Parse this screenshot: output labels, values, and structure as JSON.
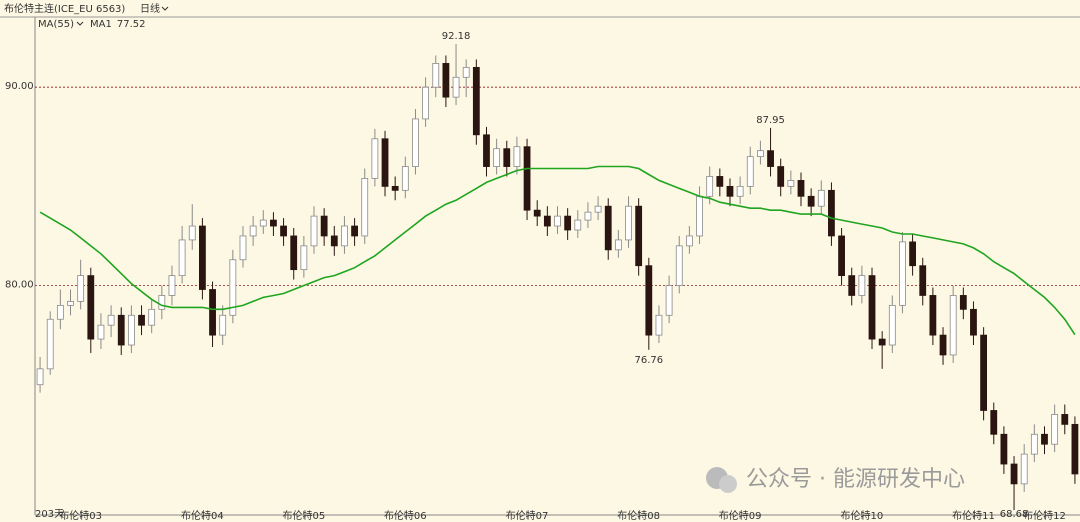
{
  "chart_data": {
    "type": "candlestick",
    "title": "布伦特主连(ICE_EU 6563)",
    "period": "日线",
    "indicator": "MA(55)",
    "count_label": "203天",
    "watermark": "公众号 · 能源研发中心",
    "up_color": "#8a8a8a",
    "down_color": "#2a1510",
    "grid_color": "#8b1a1a",
    "grid": true,
    "ylim": [
      68.43,
      93.54
    ],
    "yticks": [
      {
        "value": 80,
        "label": "80.00"
      },
      {
        "value": 90,
        "label": "90.00"
      }
    ],
    "categories": [
      null,
      null,
      null,
      null,
      "布伦特03",
      null,
      null,
      null,
      null,
      null,
      null,
      null,
      null,
      null,
      null,
      null,
      "布伦特04",
      null,
      null,
      null,
      null,
      null,
      null,
      null,
      null,
      null,
      "布伦特05",
      null,
      null,
      null,
      null,
      null,
      null,
      null,
      null,
      null,
      "布伦特06",
      null,
      null,
      null,
      null,
      null,
      null,
      null,
      null,
      null,
      null,
      null,
      "布伦特07",
      null,
      null,
      null,
      null,
      null,
      null,
      null,
      null,
      null,
      null,
      "布伦特08",
      null,
      null,
      null,
      null,
      null,
      null,
      null,
      null,
      null,
      "布伦特09",
      null,
      null,
      null,
      null,
      null,
      null,
      null,
      null,
      null,
      null,
      null,
      "布伦特10",
      null,
      null,
      null,
      null,
      null,
      null,
      null,
      null,
      null,
      null,
      "布伦特11",
      null,
      null,
      null,
      null,
      null,
      null,
      "布伦特12",
      null,
      null,
      null
    ],
    "ohlc": [
      [
        75.0,
        76.4,
        74.6,
        75.8
      ],
      [
        75.8,
        78.7,
        75.5,
        78.3
      ],
      [
        78.3,
        79.8,
        77.8,
        79.0
      ],
      [
        79.0,
        79.8,
        78.5,
        79.2
      ],
      [
        79.2,
        81.3,
        78.8,
        80.5
      ],
      [
        80.5,
        80.9,
        76.6,
        77.3
      ],
      [
        77.3,
        78.6,
        76.8,
        78.0
      ],
      [
        78.0,
        79.0,
        77.4,
        78.5
      ],
      [
        78.5,
        78.9,
        76.5,
        77.0
      ],
      [
        77.0,
        79.0,
        76.6,
        78.5
      ],
      [
        78.5,
        79.0,
        77.5,
        78.0
      ],
      [
        78.0,
        79.3,
        77.6,
        78.8
      ],
      [
        78.8,
        80.0,
        78.3,
        79.5
      ],
      [
        79.5,
        81.0,
        79.0,
        80.5
      ],
      [
        80.5,
        83.0,
        80.1,
        82.3
      ],
      [
        82.3,
        84.1,
        81.8,
        83.0
      ],
      [
        83.0,
        83.4,
        79.3,
        79.8
      ],
      [
        79.8,
        80.2,
        76.9,
        77.5
      ],
      [
        77.5,
        79.0,
        77.0,
        78.5
      ],
      [
        78.5,
        81.8,
        78.1,
        81.3
      ],
      [
        81.3,
        83.0,
        80.9,
        82.5
      ],
      [
        82.5,
        83.5,
        82.0,
        83.0
      ],
      [
        83.0,
        83.8,
        82.6,
        83.3
      ],
      [
        83.3,
        83.7,
        82.5,
        83.0
      ],
      [
        83.0,
        83.4,
        82.0,
        82.5
      ],
      [
        82.5,
        82.9,
        80.3,
        80.8
      ],
      [
        80.8,
        82.5,
        80.4,
        82.0
      ],
      [
        82.0,
        84.0,
        81.6,
        83.5
      ],
      [
        83.5,
        83.9,
        82.0,
        82.5
      ],
      [
        82.5,
        83.0,
        81.5,
        82.0
      ],
      [
        82.0,
        83.5,
        81.6,
        83.0
      ],
      [
        83.0,
        83.4,
        82.0,
        82.5
      ],
      [
        82.5,
        85.9,
        82.1,
        85.4
      ],
      [
        85.4,
        87.9,
        85.0,
        87.4
      ],
      [
        87.4,
        87.8,
        84.5,
        85.0
      ],
      [
        85.0,
        85.5,
        84.3,
        84.8
      ],
      [
        84.8,
        86.5,
        84.4,
        86.0
      ],
      [
        86.0,
        88.9,
        85.6,
        88.4
      ],
      [
        88.4,
        90.5,
        88.0,
        90.0
      ],
      [
        90.0,
        91.6,
        89.5,
        91.2
      ],
      [
        91.2,
        91.6,
        89.0,
        89.5
      ],
      [
        89.5,
        92.18,
        89.1,
        90.5
      ],
      [
        90.5,
        91.4,
        89.5,
        91.0
      ],
      [
        91.0,
        91.4,
        87.1,
        87.6
      ],
      [
        87.6,
        88.0,
        85.5,
        86.0
      ],
      [
        86.0,
        87.4,
        85.6,
        86.9
      ],
      [
        86.9,
        87.3,
        85.5,
        86.0
      ],
      [
        86.0,
        87.5,
        85.6,
        87.0
      ],
      [
        87.0,
        87.4,
        83.3,
        83.8
      ],
      [
        83.8,
        84.3,
        83.0,
        83.5
      ],
      [
        83.5,
        84.0,
        82.5,
        83.0
      ],
      [
        83.0,
        84.0,
        82.6,
        83.5
      ],
      [
        83.5,
        83.9,
        82.3,
        82.8
      ],
      [
        82.8,
        83.8,
        82.4,
        83.3
      ],
      [
        83.3,
        84.2,
        82.9,
        83.7
      ],
      [
        83.7,
        84.5,
        83.3,
        84.0
      ],
      [
        84.0,
        84.4,
        81.3,
        81.8
      ],
      [
        81.8,
        82.8,
        81.4,
        82.3
      ],
      [
        82.3,
        84.5,
        81.9,
        84.0
      ],
      [
        84.0,
        84.4,
        80.5,
        81.0
      ],
      [
        81.0,
        81.4,
        76.76,
        77.5
      ],
      [
        77.5,
        79.0,
        77.1,
        78.5
      ],
      [
        78.5,
        80.5,
        78.1,
        80.0
      ],
      [
        80.0,
        82.5,
        79.6,
        82.0
      ],
      [
        82.0,
        83.0,
        81.6,
        82.5
      ],
      [
        82.5,
        85.0,
        82.1,
        84.5
      ],
      [
        84.5,
        86.0,
        84.1,
        85.5
      ],
      [
        85.5,
        85.9,
        84.5,
        85.0
      ],
      [
        85.0,
        85.4,
        84.0,
        84.5
      ],
      [
        84.5,
        85.5,
        84.1,
        85.0
      ],
      [
        85.0,
        87.0,
        84.6,
        86.5
      ],
      [
        86.5,
        87.3,
        86.1,
        86.8
      ],
      [
        86.8,
        87.95,
        85.5,
        86.0
      ],
      [
        86.0,
        86.4,
        84.5,
        85.0
      ],
      [
        85.0,
        85.8,
        84.6,
        85.3
      ],
      [
        85.3,
        85.7,
        84.0,
        84.5
      ],
      [
        84.5,
        84.9,
        83.5,
        84.0
      ],
      [
        84.0,
        85.3,
        83.6,
        84.8
      ],
      [
        84.8,
        85.2,
        82.0,
        82.5
      ],
      [
        82.5,
        82.9,
        80.0,
        80.5
      ],
      [
        80.5,
        80.9,
        79.0,
        79.5
      ],
      [
        79.5,
        81.0,
        79.1,
        80.5
      ],
      [
        80.5,
        80.9,
        76.8,
        77.3
      ],
      [
        77.3,
        77.7,
        75.8,
        77.0
      ],
      [
        77.0,
        79.5,
        76.6,
        79.0
      ],
      [
        79.0,
        82.7,
        78.6,
        82.2
      ],
      [
        82.2,
        82.6,
        80.5,
        81.0
      ],
      [
        81.0,
        81.4,
        79.0,
        79.5
      ],
      [
        79.5,
        79.9,
        77.0,
        77.5
      ],
      [
        77.5,
        77.9,
        76.0,
        76.5
      ],
      [
        76.5,
        80.0,
        76.1,
        79.5
      ],
      [
        79.5,
        79.9,
        78.3,
        78.8
      ],
      [
        78.8,
        79.2,
        77.0,
        77.5
      ],
      [
        77.5,
        77.9,
        73.2,
        73.7
      ],
      [
        73.7,
        74.1,
        72.0,
        72.5
      ],
      [
        72.5,
        72.9,
        70.5,
        71.0
      ],
      [
        71.0,
        71.4,
        68.68,
        70.0
      ],
      [
        70.0,
        72.0,
        69.6,
        71.5
      ],
      [
        71.5,
        73.0,
        71.1,
        72.5
      ],
      [
        72.5,
        72.9,
        71.5,
        72.0
      ],
      [
        72.0,
        74.0,
        71.6,
        73.5
      ],
      [
        73.5,
        74.0,
        72.5,
        73.0
      ],
      [
        73.0,
        73.4,
        70.0,
        70.5
      ]
    ],
    "series": [
      {
        "name": "MA1",
        "color": "#1fa51f",
        "values": [
          83.7,
          83.4,
          83.1,
          82.8,
          82.4,
          82.0,
          81.6,
          81.1,
          80.6,
          80.1,
          79.7,
          79.3,
          79.0,
          78.9,
          78.9,
          78.9,
          78.9,
          78.8,
          78.8,
          78.9,
          79.0,
          79.2,
          79.4,
          79.5,
          79.6,
          79.8,
          80.0,
          80.2,
          80.4,
          80.5,
          80.7,
          80.9,
          81.2,
          81.5,
          81.9,
          82.3,
          82.7,
          83.1,
          83.5,
          83.8,
          84.1,
          84.3,
          84.6,
          84.9,
          85.2,
          85.4,
          85.6,
          85.8,
          85.9,
          85.9,
          85.9,
          85.9,
          85.9,
          85.9,
          85.9,
          86.0,
          86.0,
          86.0,
          86.0,
          85.9,
          85.6,
          85.3,
          85.1,
          84.9,
          84.7,
          84.5,
          84.4,
          84.2,
          84.1,
          84.0,
          83.9,
          83.9,
          83.8,
          83.8,
          83.7,
          83.6,
          83.6,
          83.6,
          83.4,
          83.3,
          83.2,
          83.1,
          83.0,
          82.9,
          82.7,
          82.6,
          82.6,
          82.5,
          82.4,
          82.3,
          82.2,
          82.1,
          81.9,
          81.6,
          81.2,
          80.9,
          80.6,
          80.2,
          79.8,
          79.4,
          78.9,
          78.3,
          77.52
        ]
      }
    ],
    "annotations": [
      92.18,
      87.95,
      76.76,
      68.68
    ]
  }
}
